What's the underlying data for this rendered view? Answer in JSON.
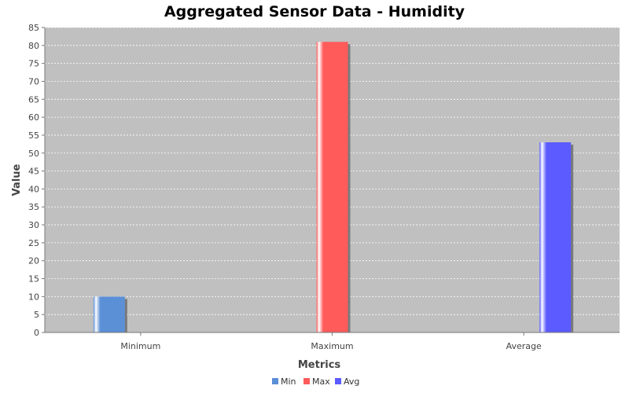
{
  "chart_data": {
    "type": "bar",
    "title": "Aggregated Sensor Data - Humidity",
    "xlabel": "Metrics",
    "ylabel": "Value",
    "categories": [
      "Minimum",
      "Maximum",
      "Average"
    ],
    "ylim": [
      0,
      85
    ],
    "ytick_step": 5,
    "grid": true,
    "legend_position": "bottom",
    "series": [
      {
        "name": "Min",
        "color": "#5b8fd6",
        "values": [
          10,
          null,
          null
        ]
      },
      {
        "name": "Max",
        "color": "#ff5b5b",
        "values": [
          null,
          81,
          null
        ]
      },
      {
        "name": "Avg",
        "color": "#5b5bff",
        "values": [
          null,
          null,
          53
        ]
      }
    ]
  },
  "colors": {
    "plot_background": "#c0c0c0",
    "gridline": "#ffffff"
  }
}
